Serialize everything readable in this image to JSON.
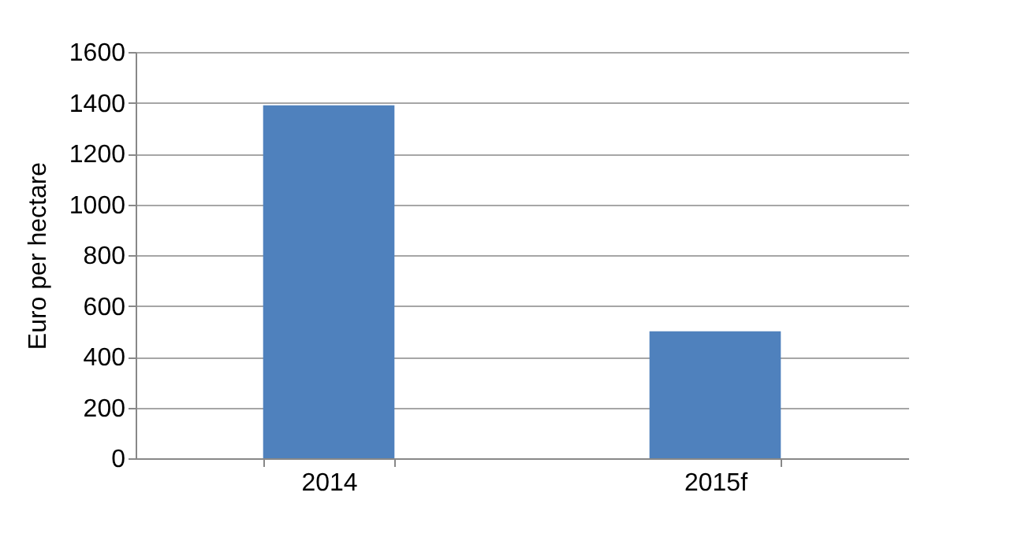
{
  "chart_data": {
    "type": "bar",
    "ylabel": "Euro per hectare",
    "categories": [
      "2014",
      "2015f"
    ],
    "values": [
      1390,
      500
    ],
    "color": "#4f81bd",
    "ylim": [
      0,
      1600
    ],
    "yticks": [
      0,
      200,
      400,
      600,
      800,
      1000,
      1200,
      1400,
      1600
    ],
    "grid": "y"
  }
}
